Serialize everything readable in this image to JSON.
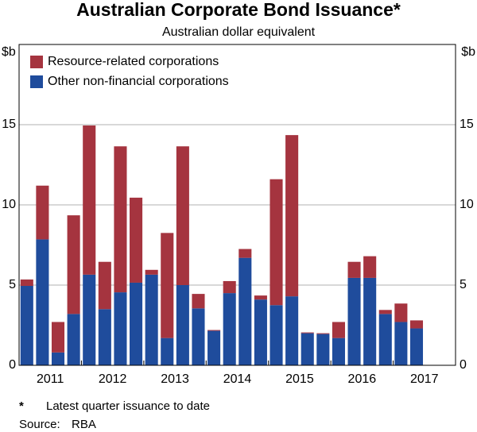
{
  "chart_data": {
    "type": "stacked-bar",
    "title": "Australian Corporate Bond Issuance*",
    "subtitle": "Australian dollar equivalent",
    "y_label": "$b",
    "y2_label": "$b",
    "years": [
      "2011",
      "2012",
      "2013",
      "2014",
      "2015",
      "2016",
      "2017"
    ],
    "series": [
      {
        "name": "Other non-financial corporations",
        "color": "#1f4c9c",
        "values": [
          4.95,
          7.85,
          0.8,
          3.2,
          5.65,
          3.5,
          4.55,
          5.15,
          5.65,
          1.7,
          5.0,
          3.55,
          2.15,
          4.5,
          6.7,
          4.1,
          3.75,
          4.3,
          2.0,
          1.95,
          1.7,
          5.45,
          5.45,
          3.2,
          2.7,
          2.3
        ]
      },
      {
        "name": "Resource-related corporations",
        "color": "#a5343f",
        "values": [
          0.4,
          3.35,
          1.9,
          6.15,
          9.3,
          2.95,
          9.1,
          5.3,
          0.3,
          6.55,
          8.65,
          0.9,
          0.05,
          0.75,
          0.55,
          0.25,
          7.85,
          10.05,
          0.05,
          0.05,
          1.0,
          1.0,
          1.35,
          0.25,
          1.15,
          0.5
        ]
      }
    ],
    "ylim": [
      0,
      20
    ],
    "yticks": [
      0,
      5,
      10,
      15
    ],
    "y2lim": [
      0,
      20
    ],
    "y2ticks": [
      0,
      5,
      10,
      15
    ],
    "grid": true,
    "footnote_marker": "*",
    "footnote": "Latest quarter issuance to date",
    "source_label": "Source:",
    "source": "RBA"
  }
}
